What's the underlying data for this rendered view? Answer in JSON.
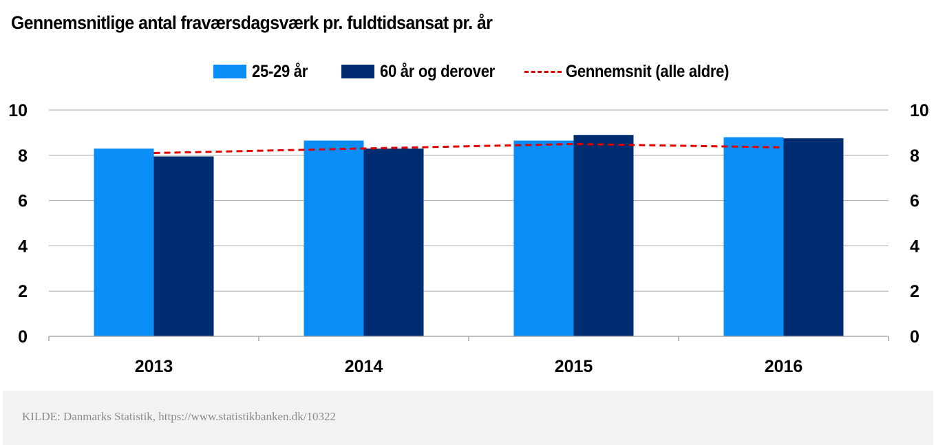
{
  "title": "Gennemsnitlige antal fraværsdagsværk pr. fuldtidsansat pr. år",
  "legend": {
    "series1": "25-29 år",
    "series2": "60 år og derover",
    "line": "Gennemsnit (alle aldre)"
  },
  "colors": {
    "series1": "#0a8ef5",
    "series2": "#002d72",
    "line": "#e00000",
    "grid": "#a6a6a6"
  },
  "chart_data": {
    "type": "bar",
    "title": "Gennemsnitlige antal fraværsdagsværk pr. fuldtidsansat pr. år",
    "categories": [
      "2013",
      "2014",
      "2015",
      "2016"
    ],
    "series": [
      {
        "name": "25-29 år",
        "type": "bar",
        "values": [
          8.3,
          8.65,
          8.65,
          8.8
        ]
      },
      {
        "name": "60 år og derover",
        "type": "bar",
        "values": [
          7.95,
          8.3,
          8.9,
          8.75
        ]
      },
      {
        "name": "Gennemsnit (alle aldre)",
        "type": "line",
        "style": "dashed",
        "values": [
          8.1,
          8.3,
          8.5,
          8.35
        ]
      }
    ],
    "ylim": [
      0,
      10
    ],
    "yticks": [
      0,
      2,
      4,
      6,
      8,
      10
    ],
    "y2lim": [
      0,
      10
    ],
    "y2ticks": [
      0,
      2,
      4,
      6,
      8,
      10
    ],
    "grid": true,
    "legend_position": "top"
  },
  "footer": {
    "source": "KILDE: Danmarks Statistik, https://www.statistikbanken.dk/10322"
  }
}
